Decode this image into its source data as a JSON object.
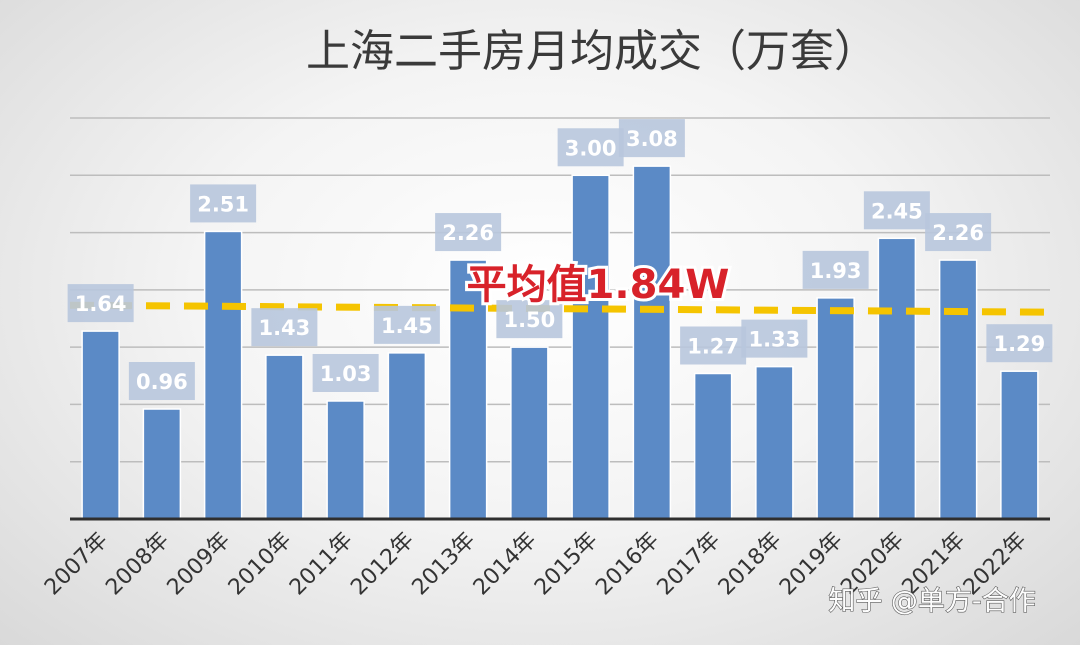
{
  "chart_data": {
    "type": "bar",
    "title": "上海二手房月均成交（万套）",
    "categories": [
      "2007年",
      "2008年",
      "2009年",
      "2010年",
      "2011年",
      "2012年",
      "2013年",
      "2014年",
      "2015年",
      "2016年",
      "2017年",
      "2018年",
      "2019年",
      "2020年",
      "2021年",
      "2022年"
    ],
    "series": [
      {
        "values": [
          1.64,
          0.96,
          2.51,
          1.43,
          1.03,
          1.45,
          2.26,
          1.5,
          3.0,
          3.08,
          1.27,
          1.33,
          1.93,
          2.45,
          2.26,
          1.29
        ]
      }
    ],
    "value_labels": [
      "1.64",
      "0.96",
      "2.51",
      "1.43",
      "1.03",
      "1.45",
      "2.26",
      "1.50",
      "3.00",
      "3.08",
      "1.27",
      "1.33",
      "1.93",
      "2.45",
      "2.26",
      "1.29"
    ],
    "average": 1.84,
    "average_label": "平均值1.84W",
    "ylim": [
      0,
      3.5
    ],
    "grid": true,
    "colors": {
      "bar": "#5b8ac6",
      "average_line": "#f5c400",
      "average_text": "#d8222a",
      "label_box": "#b8c7dd"
    }
  },
  "watermark": "知乎 @单方-合作"
}
